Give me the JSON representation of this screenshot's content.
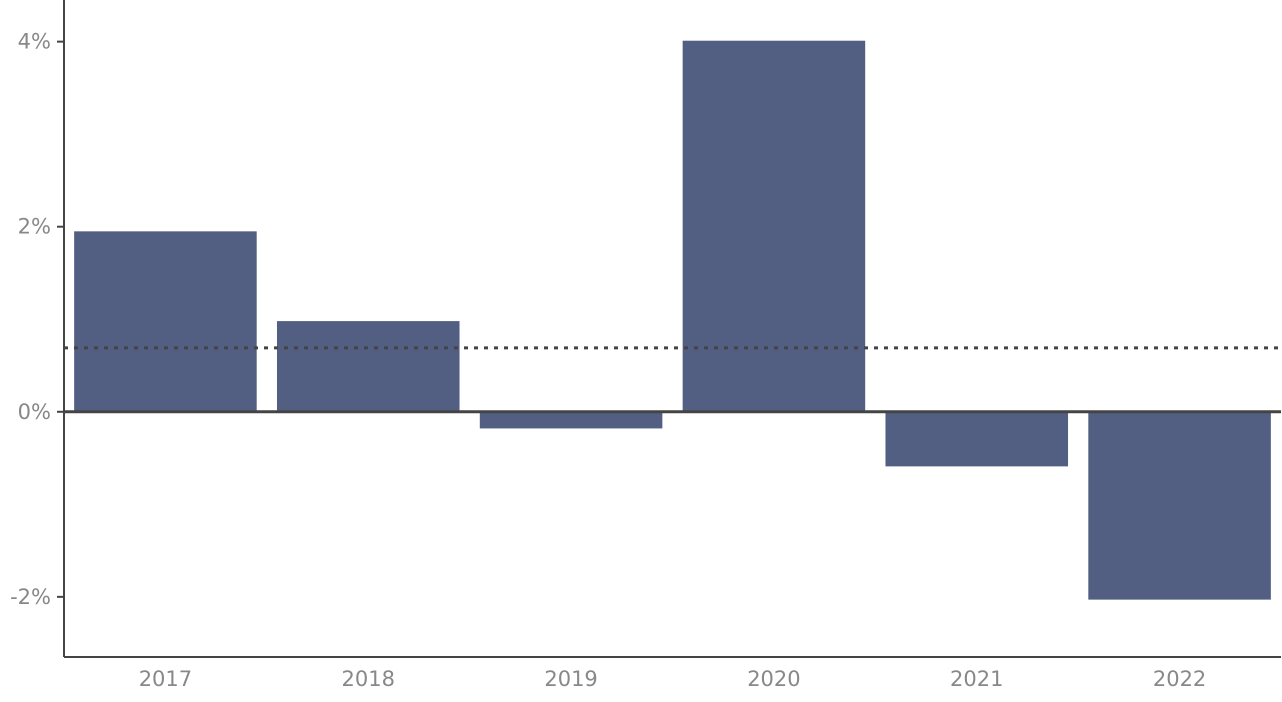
{
  "chart_data": {
    "type": "bar",
    "title": "",
    "xlabel": "",
    "ylabel": "",
    "categories": [
      "2017",
      "2018",
      "2019",
      "2020",
      "2021",
      "2022"
    ],
    "values": [
      1.95,
      0.98,
      -0.18,
      4.01,
      -0.59,
      -2.03
    ],
    "unit": "%",
    "ylim": [
      -2.65,
      4.45
    ],
    "yticks": [
      -2,
      0,
      2,
      4
    ],
    "ytick_labels": [
      "-2%",
      "0%",
      "2%",
      "4%"
    ],
    "reference_line": {
      "value": 0.69,
      "style": "dotted"
    },
    "grid": false,
    "legend": "none",
    "colors": {
      "bar": "#535f82",
      "axis": "#444444",
      "zero_line": "#444444",
      "reference_line": "#444444",
      "tick_text": "#888888"
    }
  }
}
